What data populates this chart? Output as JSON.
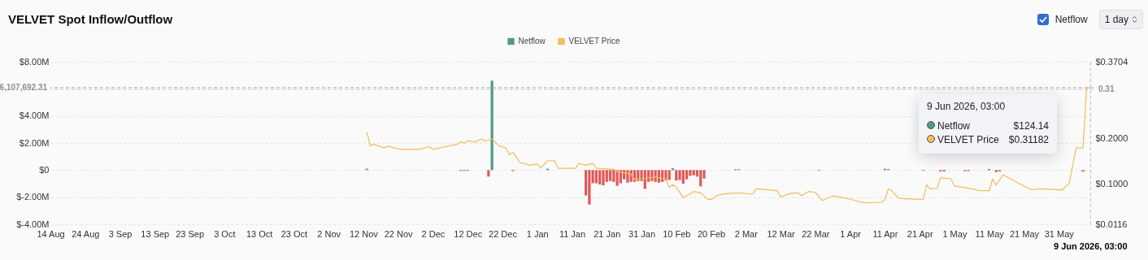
{
  "chart_data": {
    "type": "bar",
    "title": "VELVET Spot Inflow/Outflow",
    "xlim": [
      "2025-08-14",
      "2026-06-10"
    ],
    "xticks": [
      {
        "value": "2025-08-14",
        "label": "14 Aug"
      },
      {
        "value": "2025-08-24",
        "label": "24 Aug"
      },
      {
        "value": "2025-09-03",
        "label": "3 Sep"
      },
      {
        "value": "2025-09-13",
        "label": "13 Sep"
      },
      {
        "value": "2025-09-23",
        "label": "23 Sep"
      },
      {
        "value": "2025-10-03",
        "label": "3 Oct"
      },
      {
        "value": "2025-10-13",
        "label": "13 Oct"
      },
      {
        "value": "2025-10-23",
        "label": "23 Oct"
      },
      {
        "value": "2025-11-02",
        "label": "2 Nov"
      },
      {
        "value": "2025-11-12",
        "label": "12 Nov"
      },
      {
        "value": "2025-11-22",
        "label": "22 Nov"
      },
      {
        "value": "2025-12-02",
        "label": "2 Dec"
      },
      {
        "value": "2025-12-12",
        "label": "12 Dec"
      },
      {
        "value": "2025-12-22",
        "label": "22 Dec"
      },
      {
        "value": "2026-01-01",
        "label": "1 Jan"
      },
      {
        "value": "2026-01-11",
        "label": "11 Jan"
      },
      {
        "value": "2026-01-21",
        "label": "21 Jan"
      },
      {
        "value": "2026-01-31",
        "label": "31 Jan"
      },
      {
        "value": "2026-02-10",
        "label": "10 Feb"
      },
      {
        "value": "2026-02-20",
        "label": "20 Feb"
      },
      {
        "value": "2026-03-02",
        "label": "2 Mar"
      },
      {
        "value": "2026-03-12",
        "label": "12 Mar"
      },
      {
        "value": "2026-03-22",
        "label": "22 Mar"
      },
      {
        "value": "2026-04-01",
        "label": "1 Apr"
      },
      {
        "value": "2026-04-11",
        "label": "11 Apr"
      },
      {
        "value": "2026-04-21",
        "label": "21 Apr"
      },
      {
        "value": "2026-05-01",
        "label": "1 May"
      },
      {
        "value": "2026-05-11",
        "label": "11 May"
      },
      {
        "value": "2026-05-21",
        "label": "21 May"
      },
      {
        "value": "2026-05-31",
        "label": "31 May"
      }
    ],
    "ylim": [
      -4,
      8
    ],
    "yticks": [
      {
        "value": -4,
        "label": "$-4.00M"
      },
      {
        "value": -2,
        "label": "$-2.00M"
      },
      {
        "value": 0,
        "label": "$0"
      },
      {
        "value": 2,
        "label": "$2.00M"
      },
      {
        "value": 4,
        "label": "$4.00M"
      },
      {
        "value": 6,
        "label": null
      },
      {
        "value": 8,
        "label": "$8.00M"
      }
    ],
    "y2lim": [
      0.0116,
      0.3704
    ],
    "y2ticks": [
      {
        "value": 0.0116,
        "label": "$0.0116"
      },
      {
        "value": 0.1,
        "label": "$0.1000"
      },
      {
        "value": 0.2,
        "label": "$0.2000"
      },
      {
        "value": 0.3704,
        "label": "$0.3704"
      }
    ],
    "grid": "y",
    "legend": "top",
    "series": [
      {
        "name": "Netflow",
        "color": "#4e9a87",
        "x": [
          "2025-11-13",
          "2025-12-10",
          "2025-12-11",
          "2025-12-12",
          "2025-12-18",
          "2025-12-19",
          "2025-12-25",
          "2026-01-04",
          "2026-01-15",
          "2026-01-16",
          "2026-01-17",
          "2026-01-18",
          "2026-01-19",
          "2026-01-20",
          "2026-01-21",
          "2026-01-22",
          "2026-01-23",
          "2026-01-24",
          "2026-01-25",
          "2026-01-26",
          "2026-01-27",
          "2026-01-28",
          "2026-01-29",
          "2026-01-30",
          "2026-01-31",
          "2026-02-01",
          "2026-02-02",
          "2026-02-03",
          "2026-02-04",
          "2026-02-05",
          "2026-02-06",
          "2026-02-07",
          "2026-02-08",
          "2026-02-09",
          "2026-02-10",
          "2026-02-11",
          "2026-02-12",
          "2026-02-13",
          "2026-02-14",
          "2026-02-15",
          "2026-02-16",
          "2026-02-17",
          "2026-02-18",
          "2026-02-27",
          "2026-02-28",
          "2026-03-23",
          "2026-04-11",
          "2026-04-12",
          "2026-04-22",
          "2026-04-27",
          "2026-04-28",
          "2026-05-04",
          "2026-05-05",
          "2026-05-11",
          "2026-05-13",
          "2026-05-14",
          "2026-06-07"
        ],
        "values": [
          0.1,
          -0.06,
          -0.06,
          -0.06,
          -0.48,
          6.6,
          -0.08,
          0.1,
          -1.87,
          -2.55,
          -0.97,
          -0.97,
          -1.06,
          -1.12,
          -0.87,
          -0.81,
          -0.87,
          -1.16,
          -0.97,
          -0.68,
          -0.93,
          -0.87,
          -0.87,
          -0.81,
          -0.81,
          -1.39,
          -0.87,
          -0.81,
          -0.87,
          -0.93,
          -0.87,
          -0.77,
          -0.73,
          0.13,
          -0.77,
          -0.73,
          -1.0,
          -0.68,
          -0.43,
          -0.39,
          -0.48,
          -1.2,
          -0.62,
          0.06,
          0.06,
          -0.05,
          0.1,
          0.08,
          -0.05,
          -0.1,
          -0.1,
          -0.08,
          -0.08,
          0.08,
          -0.15,
          -0.1,
          -0.12
        ],
        "colors": [
          "#4e9a87",
          "#e05858",
          "#e05858",
          "#e05858",
          "#e05858",
          "#4e9a87",
          "#e05858",
          "#4e9a87",
          "#e05858",
          "#e05858",
          "#e05858",
          "#e05858",
          "#e05858",
          "#e05858",
          "#e05858",
          "#e05858",
          "#e05858",
          "#e05858",
          "#e05858",
          "#e05858",
          "#e05858",
          "#e05858",
          "#e05858",
          "#e05858",
          "#e05858",
          "#e05858",
          "#e05858",
          "#e05858",
          "#e05858",
          "#e05858",
          "#e05858",
          "#e05858",
          "#e05858",
          "#4e9a87",
          "#e05858",
          "#e05858",
          "#e05858",
          "#e05858",
          "#e05858",
          "#e05858",
          "#e05858",
          "#e05858",
          "#e05858",
          "#4e9a87",
          "#4e9a87",
          "#e05858",
          "#4e9a87",
          "#4e9a87",
          "#e05858",
          "#e05858",
          "#e05858",
          "#e05858",
          "#e05858",
          "#4e9a87",
          "#e05858",
          "#e05858",
          "#e05858"
        ]
      },
      {
        "name": "VELVET Price",
        "type": "line",
        "axis": "y2",
        "color": "#f2bd5a",
        "x": [
          "2025-11-13",
          "2025-11-14",
          "2025-11-15",
          "2025-11-18",
          "2025-11-19",
          "2025-11-21",
          "2025-11-23",
          "2025-11-28",
          "2025-12-01",
          "2025-12-02",
          "2025-12-05",
          "2025-12-09",
          "2025-12-10",
          "2025-12-11",
          "2025-12-12",
          "2025-12-14",
          "2025-12-16",
          "2025-12-17",
          "2025-12-19",
          "2025-12-21",
          "2025-12-23",
          "2025-12-24",
          "2025-12-25",
          "2025-12-27",
          "2025-12-30",
          "2026-01-01",
          "2026-01-02",
          "2026-01-04",
          "2026-01-06",
          "2026-01-07",
          "2026-01-12",
          "2026-01-13",
          "2026-01-15",
          "2026-01-17",
          "2026-01-18",
          "2026-01-23",
          "2026-01-24",
          "2026-01-28",
          "2026-01-29",
          "2026-02-01",
          "2026-02-04",
          "2026-02-07",
          "2026-02-08",
          "2026-02-09",
          "2026-02-10",
          "2026-02-12",
          "2026-02-15",
          "2026-02-17",
          "2026-02-19",
          "2026-02-20",
          "2026-02-22",
          "2026-02-24",
          "2026-02-28",
          "2026-03-04",
          "2026-03-05",
          "2026-03-11",
          "2026-03-12",
          "2026-03-15",
          "2026-03-17",
          "2026-03-18",
          "2026-03-20",
          "2026-03-22",
          "2026-03-24",
          "2026-03-27",
          "2026-03-29",
          "2026-04-02",
          "2026-04-05",
          "2026-04-10",
          "2026-04-11",
          "2026-04-12",
          "2026-04-13",
          "2026-04-15",
          "2026-04-17",
          "2026-04-22",
          "2026-04-23",
          "2026-04-24",
          "2026-04-26",
          "2026-04-27",
          "2026-04-30",
          "2026-05-01",
          "2026-05-06",
          "2026-05-08",
          "2026-05-11",
          "2026-05-12",
          "2026-05-13",
          "2026-05-15",
          "2026-05-18",
          "2026-05-21",
          "2026-05-23",
          "2026-05-26",
          "2026-06-01",
          "2026-06-03",
          "2026-06-05",
          "2026-06-07",
          "2026-06-08",
          "2026-06-09"
        ],
        "values": [
          0.216,
          0.185,
          0.188,
          0.18,
          0.184,
          0.18,
          0.177,
          0.177,
          0.183,
          0.177,
          0.182,
          0.188,
          0.194,
          0.191,
          0.196,
          0.193,
          0.2,
          0.195,
          0.2,
          0.185,
          0.18,
          0.165,
          0.171,
          0.148,
          0.142,
          0.145,
          0.136,
          0.152,
          0.152,
          0.135,
          0.135,
          0.146,
          0.142,
          0.146,
          0.135,
          0.133,
          0.128,
          0.122,
          0.11,
          0.113,
          0.116,
          0.112,
          0.093,
          0.099,
          0.093,
          0.07,
          0.084,
          0.081,
          0.067,
          0.066,
          0.076,
          0.079,
          0.081,
          0.078,
          0.09,
          0.086,
          0.072,
          0.08,
          0.081,
          0.075,
          0.084,
          0.082,
          0.064,
          0.074,
          0.072,
          0.065,
          0.059,
          0.06,
          0.066,
          0.09,
          0.086,
          0.069,
          0.068,
          0.066,
          0.099,
          0.09,
          0.091,
          0.114,
          0.112,
          0.096,
          0.09,
          0.086,
          0.086,
          0.112,
          0.098,
          0.121,
          0.108,
          0.096,
          0.088,
          0.09,
          0.087,
          0.102,
          0.18,
          0.18,
          0.314,
          0.312
        ]
      }
    ],
    "ref_lines": [
      {
        "axis": "y",
        "value": 6.10769231,
        "label": "6,107,692.31",
        "color": "#bbbbbb",
        "line_style": "dashed"
      },
      {
        "axis": "y2",
        "value": 0.31,
        "label": "0.31",
        "color": "#bbbbbb",
        "line_style": "dashed"
      },
      {
        "axis": "x",
        "value": "2026-06-09T03:00",
        "label": "9 Jun 2026, 03:00",
        "color": "#bbbbbb",
        "line_style": "dashed"
      }
    ],
    "annotations": [
      "9 Jun 2026, 03:00",
      "Netflow",
      "$124.14",
      "VELVET Price",
      "$0.31182",
      "Netflow",
      "1 day"
    ]
  }
}
